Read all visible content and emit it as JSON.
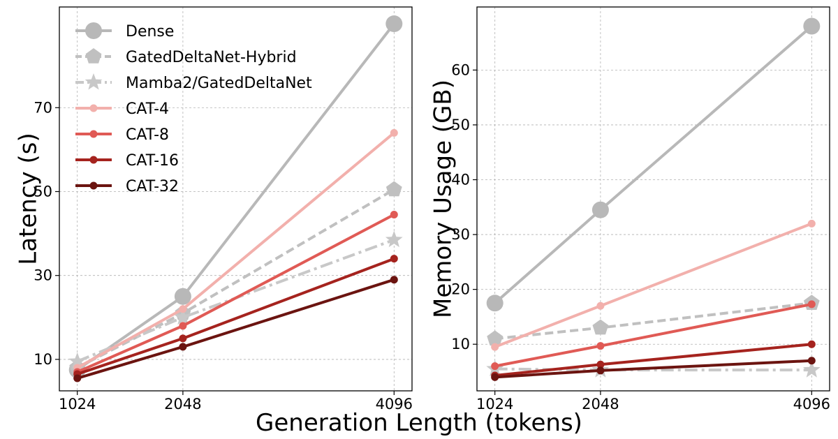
{
  "xlabel": "Generation Length (tokens)",
  "legend": {
    "placement": "top-left",
    "entries": [
      {
        "label": "Dense",
        "color": "#b8b8b8",
        "dash": "solid",
        "marker": "circle-large"
      },
      {
        "label": "GatedDeltaNet-Hybrid",
        "color": "#c0c0c0",
        "dash": "dashed",
        "marker": "pentagon"
      },
      {
        "label": "Mamba2/GatedDeltaNet",
        "color": "#c8c8c8",
        "dash": "dashdot",
        "marker": "star"
      },
      {
        "label": "CAT-4",
        "color": "#f2b0ac",
        "dash": "solid",
        "marker": "circle"
      },
      {
        "label": "CAT-8",
        "color": "#e05a55",
        "dash": "solid",
        "marker": "circle"
      },
      {
        "label": "CAT-16",
        "color": "#a5231e",
        "dash": "solid",
        "marker": "circle"
      },
      {
        "label": "CAT-32",
        "color": "#6b1410",
        "dash": "solid",
        "marker": "circle"
      }
    ]
  },
  "chart_data": [
    {
      "type": "line",
      "ylabel": "Latency (s)",
      "x": [
        1024,
        2048,
        4096
      ],
      "xticks": [
        "1024",
        "2048",
        "4096"
      ],
      "yticks": [
        "10",
        "30",
        "50",
        "70"
      ],
      "ytick_values": [
        10,
        30,
        50,
        70
      ],
      "xlim": [
        850,
        4270
      ],
      "ylim": [
        2.5,
        94
      ],
      "grid": true,
      "series": [
        {
          "name": "Dense",
          "values": [
            7.5,
            25,
            90
          ]
        },
        {
          "name": "GatedDeltaNet-Hybrid",
          "values": [
            8,
            21,
            50.5
          ]
        },
        {
          "name": "Mamba2/GatedDeltaNet",
          "values": [
            9.5,
            20,
            38.5
          ]
        },
        {
          "name": "CAT-4",
          "values": [
            8,
            22,
            64
          ]
        },
        {
          "name": "CAT-8",
          "values": [
            7,
            18,
            44.5
          ]
        },
        {
          "name": "CAT-16",
          "values": [
            6.5,
            15,
            34
          ]
        },
        {
          "name": "CAT-32",
          "values": [
            5.5,
            13,
            29
          ]
        }
      ]
    },
    {
      "type": "line",
      "ylabel": "Memory Usage (GB)",
      "x": [
        1024,
        2048,
        4096
      ],
      "xticks": [
        "1024",
        "2048",
        "4096"
      ],
      "yticks": [
        "10",
        "20",
        "30",
        "40",
        "50",
        "60"
      ],
      "ytick_values": [
        10,
        20,
        30,
        40,
        50,
        60
      ],
      "xlim": [
        850,
        4270
      ],
      "ylim": [
        1.5,
        71.5
      ],
      "grid": true,
      "series": [
        {
          "name": "Dense",
          "values": [
            17.5,
            34.5,
            68
          ]
        },
        {
          "name": "GatedDeltaNet-Hybrid",
          "values": [
            11,
            13,
            17.5
          ]
        },
        {
          "name": "Mamba2/GatedDeltaNet",
          "values": [
            5.5,
            5.3,
            5.3
          ]
        },
        {
          "name": "CAT-4",
          "values": [
            9.5,
            17,
            32
          ]
        },
        {
          "name": "CAT-8",
          "values": [
            6,
            9.7,
            17.3
          ]
        },
        {
          "name": "CAT-16",
          "values": [
            4.3,
            6.3,
            10
          ]
        },
        {
          "name": "CAT-32",
          "values": [
            4,
            5.2,
            7
          ]
        }
      ]
    }
  ]
}
